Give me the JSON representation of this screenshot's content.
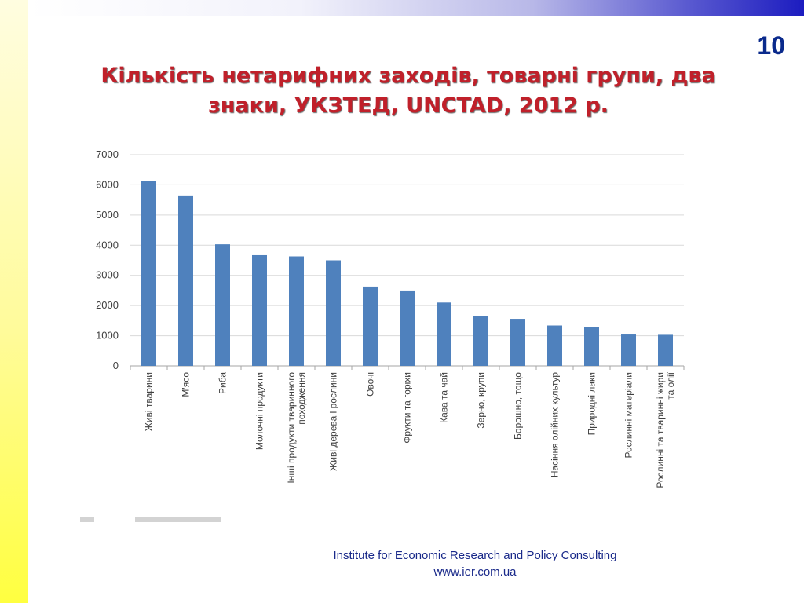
{
  "slide": {
    "number": "10",
    "title_line1": "Кількість нетарифних заходів, товарні групи, два",
    "title_line2": "знаки, УКЗТЕД, UNCTAD, 2012 р."
  },
  "footer": {
    "institute": "Institute for Economic Research and Policy Consulting",
    "website": "www.ier.com.ua"
  },
  "colors": {
    "bar": "#4f81bd",
    "title": "#c0202a",
    "slide_number": "#0a2a8c",
    "footer": "#1a2a8a",
    "gridline": "#d9d9d9"
  },
  "chart_data": {
    "type": "bar",
    "title": "",
    "xlabel": "",
    "ylabel": "",
    "ylim": [
      0,
      7000
    ],
    "yticks": [
      0,
      1000,
      2000,
      3000,
      4000,
      5000,
      6000,
      7000
    ],
    "grid": true,
    "legend": "none",
    "categories": [
      "Живі тварини",
      "М'ясо",
      "Риба",
      "Молочні продукти",
      "Інші продукти тваринного походження",
      "Живі дерева і рослини",
      "Овочі",
      "Фрукти та горіхи",
      "Кава та чай",
      "Зерно, крупи",
      "Борошно, тощо",
      "Насіння олійних культур",
      "Природні лаки",
      "Рослинні матеріали",
      "Рослинні та тваринні жири та олії"
    ],
    "category_lines": [
      [
        "Живі тварини"
      ],
      [
        "М'ясо"
      ],
      [
        "Риба"
      ],
      [
        "Молочні продукти"
      ],
      [
        "Інші продукти тваринного",
        "походження"
      ],
      [
        "Живі дерева і рослини"
      ],
      [
        "Овочі"
      ],
      [
        "Фрукти та горіхи"
      ],
      [
        "Кава та чай"
      ],
      [
        "Зерно, крупи"
      ],
      [
        "Борошно, тощо"
      ],
      [
        "Насіння олійних культур"
      ],
      [
        "Природні лаки"
      ],
      [
        "Рослинні матеріали"
      ],
      [
        "Рослинні та тваринні жири",
        "та олії"
      ]
    ],
    "values": [
      6130,
      5650,
      4030,
      3670,
      3630,
      3500,
      2630,
      2500,
      2100,
      1650,
      1560,
      1340,
      1300,
      1040,
      1030
    ]
  }
}
